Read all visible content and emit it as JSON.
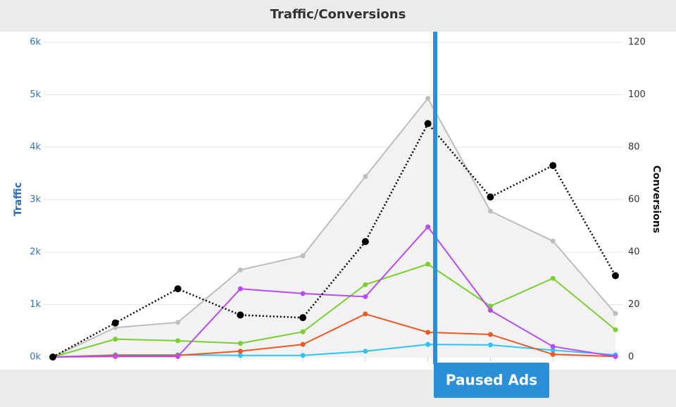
{
  "chart_data": {
    "type": "line",
    "title": "Traffic/Conversions",
    "y_label": "Traffic",
    "y2_label": "Conversions",
    "annotation": "Paused Ads",
    "categories": [
      null,
      null,
      null,
      null,
      null,
      null,
      null,
      null,
      null,
      null
    ],
    "ylim": [
      0,
      6000
    ],
    "yticks": [
      {
        "value": 0,
        "label": "0k"
      },
      {
        "value": 1000,
        "label": "1k"
      },
      {
        "value": 2000,
        "label": "2k"
      },
      {
        "value": 3000,
        "label": "3k"
      },
      {
        "value": 4000,
        "label": "4k"
      },
      {
        "value": 5000,
        "label": "5k"
      },
      {
        "value": 6000,
        "label": "6k"
      }
    ],
    "y2lim": [
      0,
      120
    ],
    "y2ticks": [
      0,
      20,
      40,
      60,
      80,
      100,
      120
    ],
    "grid": true,
    "series": [
      {
        "color": "#bdbdbd",
        "area": true,
        "values": [
          0,
          560,
          660,
          1660,
          1930,
          3440,
          4930,
          2780,
          2210,
          830
        ]
      },
      {
        "color": "#2ec5f0",
        "values": [
          0,
          40,
          40,
          30,
          30,
          110,
          240,
          230,
          130,
          40
        ]
      },
      {
        "color": "#ea5a26",
        "values": [
          0,
          30,
          30,
          110,
          240,
          820,
          470,
          430,
          50,
          10
        ]
      },
      {
        "color": "#78cf2f",
        "values": [
          0,
          340,
          310,
          260,
          480,
          1380,
          1770,
          970,
          1500,
          520
        ]
      },
      {
        "color": "#b84cf0",
        "values": [
          0,
          10,
          10,
          1300,
          1210,
          1150,
          2480,
          890,
          200,
          10
        ]
      },
      {
        "color": "#000000",
        "dashed": true,
        "axis": "y2",
        "values": [
          0,
          13,
          26,
          16,
          15,
          44,
          89,
          61,
          73,
          31
        ]
      }
    ]
  }
}
